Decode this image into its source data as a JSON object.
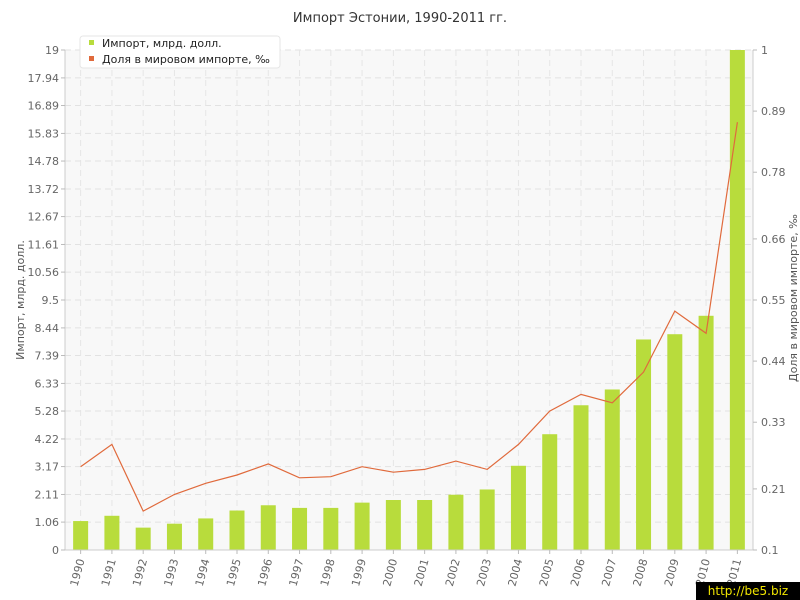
{
  "chart_data": {
    "type": "bar",
    "title": "Импорт Эстонии, 1990-2011 гг.",
    "ylabel": "Импорт, млрд. долл.",
    "y2label": "Доля в мировом импорте, ‰",
    "categories": [
      "1990",
      "1991",
      "1992",
      "1993",
      "1994",
      "1995",
      "1996",
      "1997",
      "1998",
      "1999",
      "2000",
      "2001",
      "2002",
      "2003",
      "2004",
      "2005",
      "2006",
      "2007",
      "2008",
      "2009",
      "2010",
      "2011"
    ],
    "ylim": [
      0,
      19
    ],
    "yticks": [
      "0",
      "1.06",
      "2.11",
      "3.17",
      "4.22",
      "5.28",
      "6.33",
      "7.39",
      "8.44",
      "9.5",
      "10.56",
      "11.61",
      "12.67",
      "13.72",
      "14.78",
      "15.83",
      "16.89",
      "17.94",
      "19"
    ],
    "y2lim": [
      0.1,
      1
    ],
    "y2ticks": [
      "0.1",
      "0.21",
      "0.33",
      "0.44",
      "0.55",
      "0.66",
      "0.78",
      "0.89",
      "1"
    ],
    "grid": true,
    "legend_position": "top-left",
    "series": [
      {
        "name": "Импорт, млрд. долл.",
        "kind": "bar",
        "axis": "left",
        "color": "#b8dc3c",
        "values": [
          1.1,
          1.3,
          0.85,
          1.0,
          1.2,
          1.5,
          1.7,
          1.6,
          1.6,
          1.8,
          1.9,
          1.9,
          2.1,
          2.3,
          3.2,
          4.4,
          5.5,
          6.1,
          8.0,
          8.2,
          8.9,
          19.0
        ]
      },
      {
        "name": "Доля в мировом импорте, ‰",
        "kind": "line",
        "axis": "right",
        "color": "#e06a3c",
        "values": [
          0.25,
          0.29,
          0.17,
          0.2,
          0.22,
          0.235,
          0.255,
          0.23,
          0.232,
          0.25,
          0.24,
          0.245,
          0.26,
          0.245,
          0.29,
          0.35,
          0.38,
          0.365,
          0.42,
          0.53,
          0.49,
          0.87
        ]
      }
    ]
  },
  "watermark": "http://be5.biz"
}
